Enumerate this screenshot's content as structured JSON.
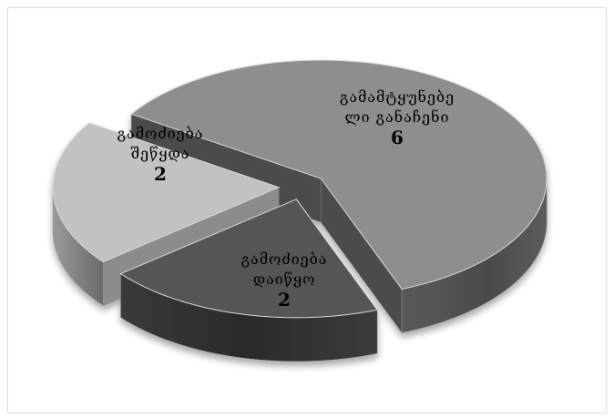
{
  "chart_data": {
    "type": "pie",
    "title": "",
    "three_d": true,
    "exploded": true,
    "legend": "none",
    "slices": [
      {
        "label_lines": [
          "გამოძიება",
          "შეწყდა"
        ],
        "value": 2,
        "value_label": "2",
        "color": "#c2c2c2"
      },
      {
        "label_lines": [
          "გამოძიება",
          "დაიწყო"
        ],
        "value": 2,
        "value_label": "2",
        "color": "#555555"
      },
      {
        "label_lines": [
          "გამამტყუნებე",
          "ლი განაჩენი"
        ],
        "value": 6,
        "value_label": "6",
        "color": "#8e8e8e"
      }
    ]
  }
}
